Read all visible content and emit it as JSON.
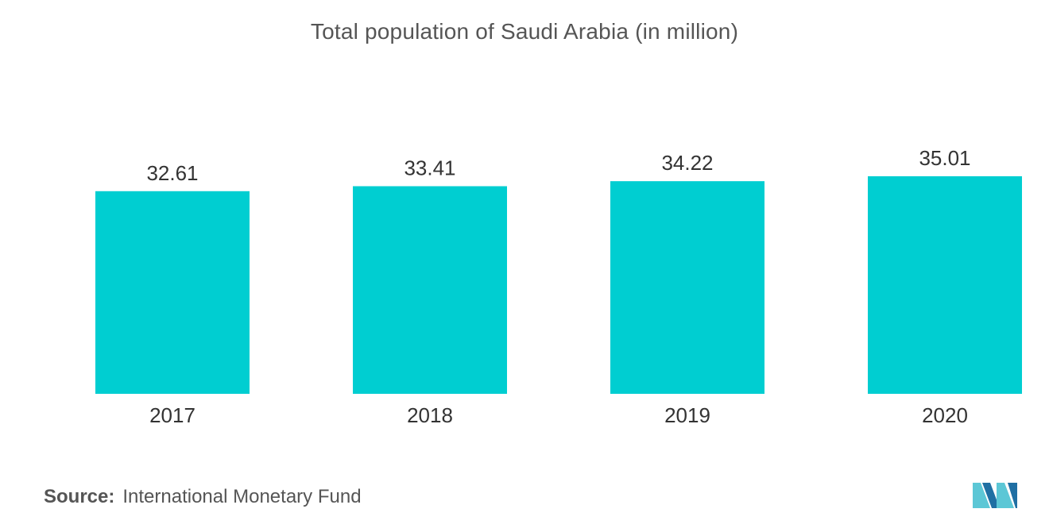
{
  "chart_data": {
    "type": "bar",
    "title": "Total population of Saudi Arabia (in million)",
    "categories": [
      "2017",
      "2018",
      "2019",
      "2020"
    ],
    "values": [
      32.61,
      33.41,
      34.22,
      35.01
    ],
    "value_labels": [
      "32.61",
      "33.41",
      "34.22",
      "35.01"
    ],
    "xlabel": "",
    "ylabel": "",
    "ylim": [
      0,
      35.01
    ],
    "grid": false,
    "legend": "none",
    "bar_color": "#00CED1"
  },
  "footer": {
    "source_label": "Source:",
    "source_text": "International Monetary Fund"
  },
  "colors": {
    "title": "#555555",
    "text": "#333333",
    "logo_dark": "#1f6fa3",
    "logo_light": "#5cc7d6"
  },
  "logo": {
    "icon": "mordor-intelligence-logo-icon"
  }
}
